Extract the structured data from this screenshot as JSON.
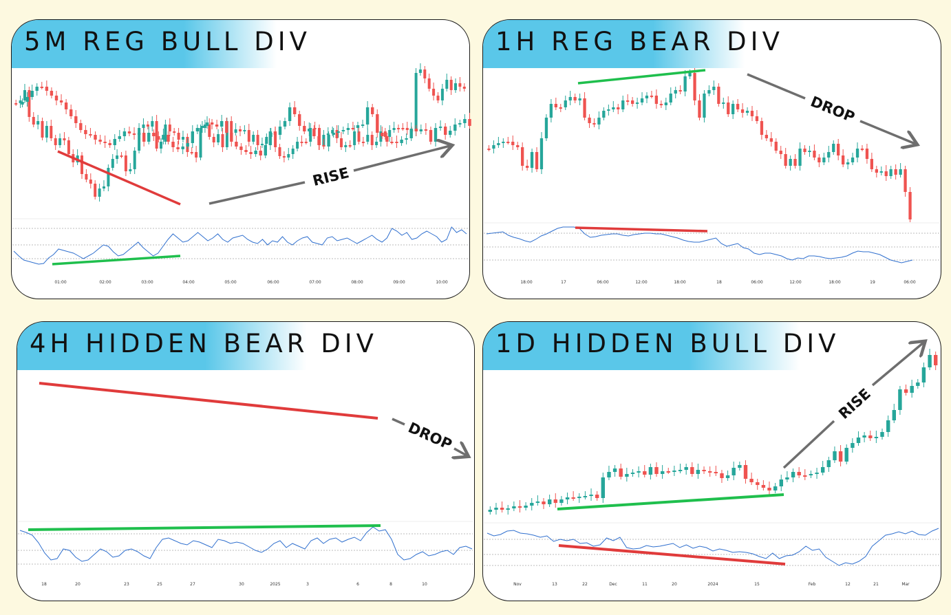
{
  "panels": [
    {
      "id": "p1",
      "title": "5M REG BULL DIV",
      "ticks": [
        "01:00",
        "02:00",
        "03:00",
        "04:00",
        "05:00",
        "06:00",
        "07:00",
        "08:00",
        "09:00",
        "10:00"
      ],
      "arrow_label": "RISE"
    },
    {
      "id": "p2",
      "title": "1H REG BEAR DIV",
      "ticks": [
        "18:00",
        "17",
        "06:00",
        "12:00",
        "18:00",
        "18",
        "06:00",
        "12:00",
        "18:00",
        "19",
        "06:00"
      ],
      "arrow_label": "DROP"
    },
    {
      "id": "p3",
      "title": "4H HIDDEN BEAR DIV",
      "ticks": [
        "18",
        "20",
        "23",
        "25",
        "27",
        "30",
        "2025",
        "3",
        "6",
        "8",
        "10"
      ],
      "arrow_label": "DROP"
    },
    {
      "id": "p4",
      "title": "1D HIDDEN BULL DIV",
      "ticks": [
        "Nov",
        "13",
        "22",
        "Dec",
        "11",
        "20",
        "2024",
        "15",
        "Feb",
        "12",
        "21",
        "Mar"
      ],
      "arrow_label": "RISE"
    }
  ],
  "colors": {
    "bull": "#26a69a",
    "bear": "#ef5350",
    "rsi": "#2f6fce",
    "div_green": "#1fbf4d",
    "div_red": "#e03b3b",
    "arrow": "#6e6e6e",
    "banner": "#5ac7e9",
    "background": "#fdf9e0"
  },
  "chart_data": [
    {
      "type": "candlestick",
      "title": "5M REG BULL DIV",
      "x": [
        "01:00",
        "02:00",
        "03:00",
        "04:00",
        "05:00",
        "06:00",
        "07:00",
        "08:00",
        "09:00",
        "10:00"
      ],
      "price_closes": [
        150,
        146,
        131,
        170,
        181,
        176,
        200,
        183,
        201,
        211,
        201,
        204,
        224,
        236,
        226,
        253,
        261,
        267,
        286,
        274,
        271,
        244,
        231,
        226,
        226,
        249,
        246,
        219,
        186,
        181,
        184,
        176,
        216,
        206,
        181,
        191,
        193,
        203,
        199,
        221,
        221,
        229,
        186,
        181,
        199,
        207,
        195,
        214,
        176,
        193,
        188,
        191,
        189,
        206,
        196,
        211,
        209,
        199,
        193,
        214,
        227,
        229,
        224,
        216,
        206,
        206,
        206,
        186,
        186,
        211,
        196,
        194,
        189,
        201,
        214,
        211,
        211,
        191,
        206,
        206,
        196,
        211,
        206,
        191,
        199,
        189,
        186,
        186,
        186,
        189,
        191,
        106,
        101,
        114,
        129,
        139,
        146,
        129,
        116,
        131,
        121,
        126,
        129
      ],
      "rsi": [
        365,
        372,
        378,
        380,
        382,
        384,
        383,
        375,
        370,
        362,
        364,
        366,
        368,
        372,
        376,
        372,
        368,
        362,
        356,
        358,
        366,
        372,
        370,
        364,
        358,
        352,
        360,
        366,
        372,
        368,
        358,
        348,
        340,
        346,
        352,
        350,
        344,
        338,
        344,
        350,
        346,
        340,
        348,
        352,
        346,
        344,
        342,
        348,
        352,
        354,
        348,
        356,
        350,
        352,
        344,
        352,
        356,
        350,
        346,
        344,
        352,
        354,
        356,
        346,
        344,
        350,
        348,
        346,
        350,
        354,
        350,
        346,
        342,
        348,
        352,
        346,
        332,
        336,
        342,
        338,
        348,
        346,
        340,
        336,
        340,
        344,
        352,
        348,
        330,
        338,
        334,
        340
      ],
      "divergence_lines": [
        {
          "series": "price",
          "direction": "lower lows"
        },
        {
          "series": "rsi",
          "direction": "higher lows"
        }
      ]
    },
    {
      "type": "candlestick",
      "title": "1H REG BEAR DIV",
      "x": [
        "18:00",
        "17",
        "06:00",
        "12:00",
        "18:00",
        "18",
        "06:00",
        "12:00",
        "18:00",
        "19",
        "06:00"
      ],
      "price_closes": [
        216,
        211,
        208,
        206,
        206,
        211,
        214,
        241,
        244,
        221,
        246,
        201,
        171,
        151,
        156,
        156,
        146,
        141,
        146,
        143,
        171,
        179,
        181,
        171,
        161,
        159,
        156,
        159,
        146,
        146,
        151,
        149,
        143,
        139,
        139,
        151,
        153,
        149,
        136,
        131,
        133,
        111,
        106,
        146,
        171,
        136,
        131,
        126,
        151,
        149,
        166,
        151,
        159,
        164,
        161,
        169,
        176,
        196,
        201,
        206,
        219,
        224,
        241,
        231,
        241,
        216,
        221,
        219,
        229,
        236,
        229,
        221,
        209,
        226,
        239,
        236,
        229,
        216,
        216,
        231,
        246,
        251,
        249,
        256,
        246,
        254,
        246,
        279,
        319
      ],
      "rsi": [
        340,
        339,
        338,
        337,
        342,
        345,
        347,
        350,
        352,
        348,
        343,
        340,
        336,
        332,
        330,
        330,
        330,
        332,
        340,
        345,
        344,
        342,
        341,
        340,
        340,
        342,
        343,
        341,
        340,
        339,
        339,
        340,
        340,
        342,
        344,
        346,
        349,
        351,
        352,
        352,
        350,
        348,
        346,
        354,
        358,
        356,
        354,
        360,
        362,
        368,
        370,
        368,
        368,
        370,
        372,
        376,
        378,
        375,
        376,
        372,
        372,
        373,
        375,
        376,
        375,
        374,
        372,
        368,
        365,
        366,
        366,
        368,
        370,
        374,
        378,
        380,
        382,
        380,
        378
      ],
      "divergence_lines": [
        {
          "series": "price",
          "direction": "higher highs"
        },
        {
          "series": "rsi",
          "direction": "lower highs"
        }
      ]
    },
    {
      "type": "candlestick",
      "title": "4H HIDDEN BEAR DIV",
      "x": [
        "18",
        "20",
        "23",
        "25",
        "27",
        "30",
        "2025",
        "3",
        "6",
        "8",
        "10"
      ],
      "price_closes": [
        148,
        141,
        132,
        126,
        126,
        132,
        139,
        146,
        149,
        159,
        169,
        179,
        189,
        195,
        196,
        203,
        206,
        208,
        211,
        202,
        198,
        191,
        194,
        196,
        193,
        206,
        193,
        198,
        203,
        196,
        206,
        214,
        217,
        213,
        208,
        191,
        186,
        183,
        178,
        181,
        184,
        176,
        193,
        206,
        213,
        218,
        221,
        224,
        219,
        226,
        211,
        191,
        196,
        184,
        176,
        156,
        166,
        183,
        191,
        187,
        198,
        211,
        213,
        196,
        193,
        191,
        189,
        186,
        186,
        182,
        181,
        156,
        166,
        193,
        198,
        206,
        206,
        208,
        203,
        201,
        187,
        191,
        188,
        189,
        206,
        186,
        184,
        196,
        190,
        181,
        179,
        173,
        183
      ],
      "rsi": [
        771,
        774,
        778,
        789,
        804,
        814,
        812,
        798,
        800,
        810,
        816,
        814,
        806,
        798,
        802,
        810,
        808,
        800,
        798,
        802,
        808,
        812,
        796,
        784,
        782,
        786,
        790,
        792,
        786,
        788,
        792,
        796,
        784,
        786,
        790,
        788,
        790,
        795,
        800,
        803,
        798,
        790,
        786,
        796,
        790,
        794,
        798,
        786,
        782,
        790,
        784,
        782,
        788,
        784,
        781,
        786,
        774,
        766,
        772,
        770,
        784,
        806,
        814,
        812,
        806,
        802,
        808,
        806,
        802,
        800,
        806,
        796,
        794,
        798
      ],
      "divergence_lines": [
        {
          "series": "price",
          "direction": "lower highs"
        },
        {
          "series": "rsi",
          "direction": "higher highs"
        }
      ]
    },
    {
      "type": "candlestick",
      "title": "1D HIDDEN BULL DIV",
      "x": [
        "Nov",
        "13",
        "22",
        "Dec",
        "11",
        "20",
        "2024",
        "15",
        "Feb",
        "12",
        "21",
        "Mar"
      ],
      "price_closes": [
        741,
        738,
        741,
        739,
        736,
        738,
        735,
        731,
        729,
        733,
        726,
        731,
        726,
        723,
        724,
        722,
        721,
        719,
        724,
        694,
        686,
        681,
        693,
        689,
        687,
        685,
        690,
        679,
        689,
        685,
        685,
        684,
        683,
        679,
        689,
        683,
        685,
        686,
        688,
        695,
        691,
        680,
        676,
        696,
        701,
        705,
        709,
        713,
        707,
        697,
        694,
        686,
        691,
        691,
        689,
        687,
        679,
        669,
        656,
        671,
        651,
        644,
        636,
        633,
        637,
        635,
        628,
        611,
        596,
        566,
        571,
        561,
        556,
        534,
        516,
        531
      ],
      "rsi": [
        775,
        779,
        777,
        772,
        771,
        775,
        776,
        778,
        781,
        779,
        787,
        784,
        786,
        784,
        790,
        789,
        794,
        792,
        782,
        786,
        781,
        796,
        798,
        797,
        793,
        795,
        794,
        792,
        790,
        796,
        792,
        797,
        794,
        796,
        801,
        798,
        800,
        803,
        802,
        803,
        805,
        809,
        812,
        804,
        812,
        808,
        807,
        802,
        794,
        800,
        798,
        810,
        816,
        822,
        818,
        820,
        816,
        809,
        794,
        786,
        778,
        776,
        773,
        776,
        772,
        777,
        778,
        772,
        768
      ],
      "divergence_lines": [
        {
          "series": "price",
          "direction": "higher lows"
        },
        {
          "series": "rsi",
          "direction": "lower lows"
        }
      ]
    }
  ]
}
